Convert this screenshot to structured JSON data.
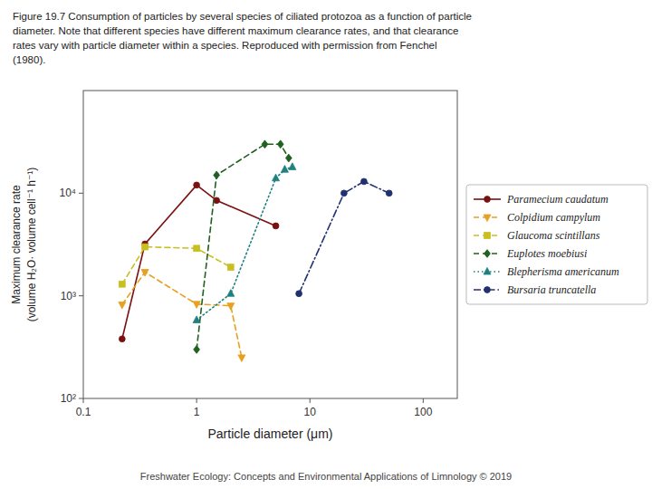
{
  "chart_data": {
    "type": "line",
    "title": "Figure 19.7 Consumption of particles by several species of ciliated protozoa as a function of particle\ndiameter. Note that different species have different maximum clearance rates, and that clearance\nrates vary with particle diameter within a species. Reproduced with permission from Fenchel\n(1980).",
    "x_label": "Particle diameter (μm)",
    "y_label": "Maximum clearance rate\n(volume H₂O· volume cell⁻¹ h⁻¹)",
    "annotations": [
      "Freshwater Ecology: Concepts and Environmental Applications of Limnology  © 2019"
    ],
    "log": true,
    "grid": false,
    "legend": "right",
    "xlim": [
      0.1,
      200
    ],
    "ylim": [
      100,
      100000
    ],
    "xticks": [
      0.1,
      1,
      10,
      100
    ],
    "yticks": [
      {
        "value": 100,
        "label": "10²"
      },
      {
        "value": 1000,
        "label": "10³"
      },
      {
        "value": 10000,
        "label": "10⁴"
      }
    ],
    "series": [
      {
        "name": "Paramecium caudatum",
        "color": "#7B1010",
        "line_style": "solid",
        "marker": "circle",
        "x": [
          0.22,
          0.35,
          1.0,
          1.5,
          5.0
        ],
        "values": [
          380,
          3200,
          12000,
          8500,
          4800
        ]
      },
      {
        "name": "Colpidium campylum",
        "color": "#E8A020",
        "line_style": "dashed",
        "marker": "triangle-down",
        "x": [
          0.22,
          0.35,
          1.0,
          2.0,
          2.5
        ],
        "values": [
          820,
          1700,
          830,
          800,
          250
        ]
      },
      {
        "name": "Glaucoma scintillans",
        "color": "#C8C020",
        "line_style": "dashed",
        "marker": "square",
        "x": [
          0.22,
          0.35,
          1.0,
          2.0
        ],
        "values": [
          1300,
          3000,
          2900,
          1900
        ]
      },
      {
        "name": "Euplotes moebiusi",
        "color": "#206020",
        "line_style": "dashed",
        "marker": "diamond",
        "x": [
          1.0,
          1.5,
          4.0,
          5.5,
          6.5
        ],
        "values": [
          300,
          15000,
          30000,
          30000,
          22000
        ]
      },
      {
        "name": "Blepherisma americanum",
        "color": "#208080",
        "line_style": "dotted",
        "marker": "triangle-up",
        "x": [
          1.0,
          2.0,
          5.0,
          6.0,
          7.0
        ],
        "values": [
          580,
          1050,
          14000,
          17000,
          18000
        ]
      },
      {
        "name": "Bursaria truncatella",
        "color": "#203070",
        "line_style": "dashdot",
        "marker": "circle",
        "x": [
          8.0,
          20.0,
          30.0,
          50.0
        ],
        "values": [
          1050,
          10000,
          13000,
          10000
        ]
      }
    ]
  }
}
